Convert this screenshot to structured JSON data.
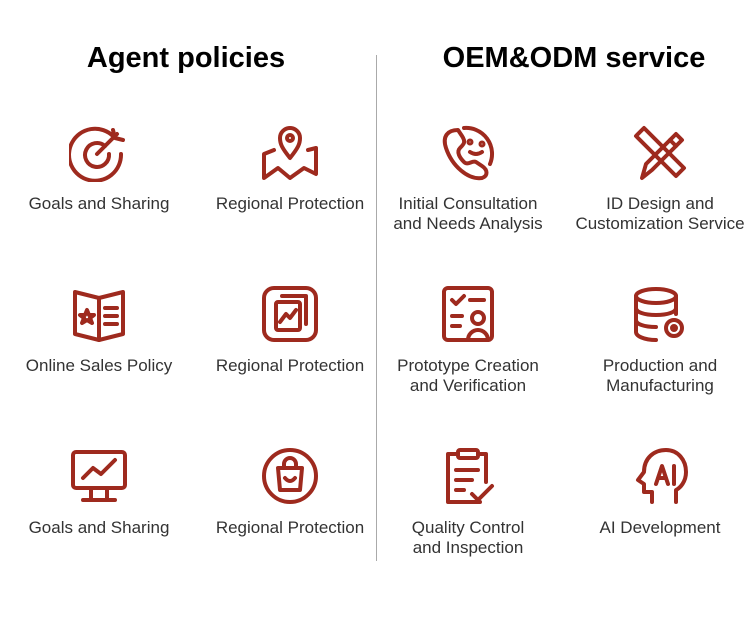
{
  "accent": "#9e2a1e",
  "left": {
    "title": "Agent policies",
    "items": [
      {
        "label": "Goals and Sharing",
        "icon": "target-icon"
      },
      {
        "label": "Regional Protection",
        "icon": "map-pin-icon"
      },
      {
        "label": "Online Sales Policy",
        "icon": "brochure-star-icon"
      },
      {
        "label": "Regional Protection",
        "icon": "document-chart-icon"
      },
      {
        "label": "Goals and Sharing",
        "icon": "monitor-chart-icon"
      },
      {
        "label": "Regional Protection",
        "icon": "shopping-bag-icon"
      }
    ]
  },
  "right": {
    "title": "OEM&ODM service",
    "items": [
      {
        "label": "Initial Consultation\nand Needs Analysis",
        "icon": "phone-smile-icon"
      },
      {
        "label": "ID Design and\nCustomization Service",
        "icon": "pencil-ruler-icon"
      },
      {
        "label": "Prototype Creation\nand Verification",
        "icon": "checklist-user-icon"
      },
      {
        "label": "Production and\nManufacturing",
        "icon": "database-gear-icon"
      },
      {
        "label": "Quality Control\nand Inspection",
        "icon": "clipboard-check-icon"
      },
      {
        "label": "AI Development",
        "icon": "ai-head-icon"
      }
    ]
  }
}
